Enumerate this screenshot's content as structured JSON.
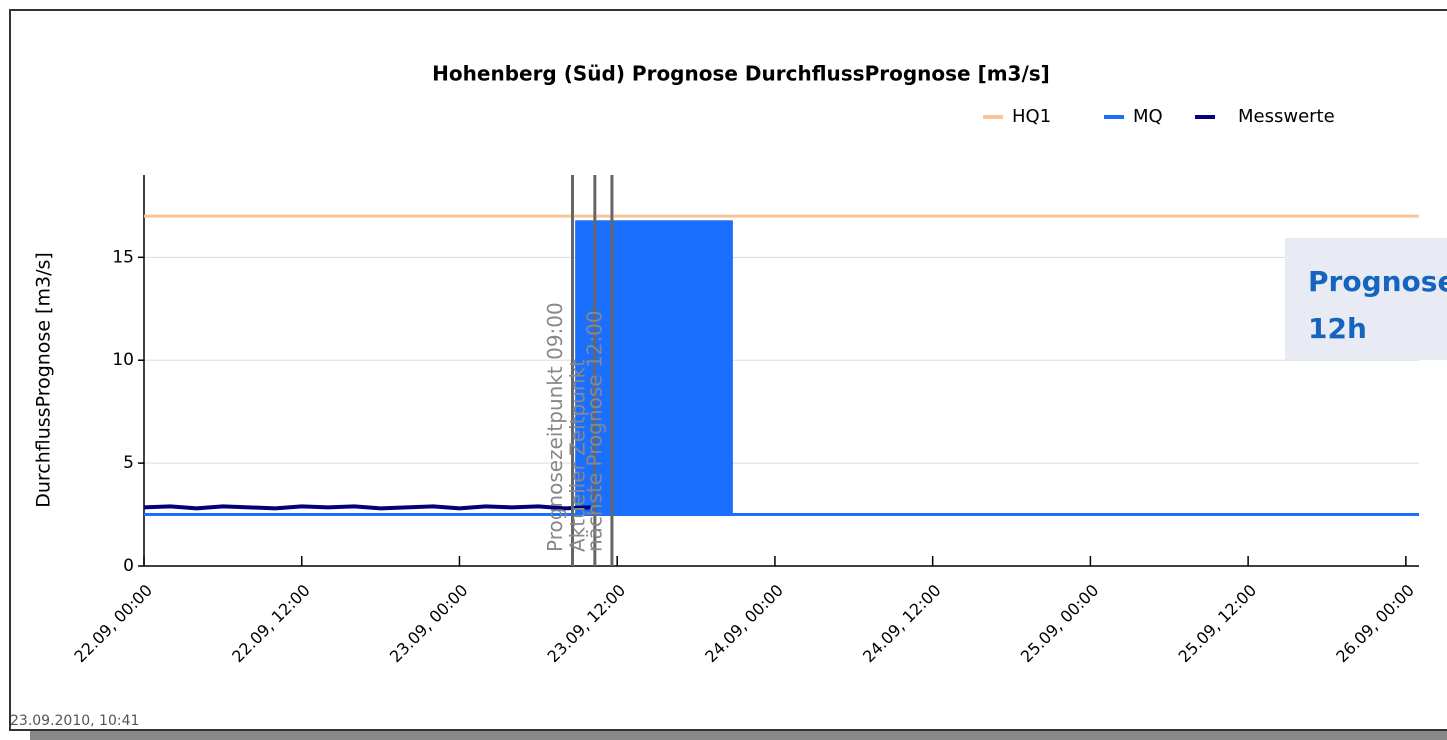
{
  "chart_data": {
    "type": "line",
    "title": "Hohenberg (Süd) Prognose DurchflussPrognose [m3/s]",
    "y_label": "DurchflussPrognose [m3/s]",
    "timestamp": "23.09.2010, 10:41",
    "overlay": [
      "Prognose",
      "12h"
    ],
    "xlim": [
      0,
      97
    ],
    "xticks": [
      {
        "value": 0,
        "label": "22.09, 00:00"
      },
      {
        "value": 12,
        "label": "22.09, 12:00"
      },
      {
        "value": 24,
        "label": "23.09, 00:00"
      },
      {
        "value": 36,
        "label": "23.09, 12:00"
      },
      {
        "value": 48,
        "label": "24.09, 00:00"
      },
      {
        "value": 60,
        "label": "24.09, 12:00"
      },
      {
        "value": 72,
        "label": "25.09, 00:00"
      },
      {
        "value": 84,
        "label": "25.09, 12:00"
      },
      {
        "value": 96,
        "label": "26.09, 00:00"
      }
    ],
    "ylim": [
      0,
      19
    ],
    "yticks": [
      0,
      5,
      10,
      15
    ],
    "grid": true,
    "legend": "top-right",
    "series": [
      {
        "name": "HQ1",
        "color": "#f9c596",
        "x": [
          0,
          97
        ],
        "values": [
          17,
          17
        ]
      },
      {
        "name": "MQ",
        "color": "#1a6fff",
        "x": [
          0,
          97
        ],
        "values": [
          2.5,
          2.5
        ]
      },
      {
        "name": "Messwerte",
        "color": "#00007a",
        "x": [
          0,
          2,
          4,
          6,
          8,
          10,
          12,
          14,
          16,
          18,
          20,
          22,
          24,
          26,
          28,
          30,
          32,
          34
        ],
        "values": [
          2.85,
          2.9,
          2.8,
          2.9,
          2.85,
          2.8,
          2.9,
          2.85,
          2.9,
          2.8,
          2.85,
          2.9,
          2.8,
          2.9,
          2.85,
          2.9,
          2.8,
          2.85
        ]
      }
    ],
    "forecast": {
      "color": "#1a6fff",
      "x": [
        32.8,
        44.8
      ],
      "value": 16.8,
      "base": 2.5
    },
    "markers": [
      {
        "x": 32.6,
        "label": "Prognosezeitpunkt 09:00"
      },
      {
        "x": 34.3,
        "label": "Aktueller Zeitpunkt"
      },
      {
        "x": 35.6,
        "label": "nächste Prognose 12:00"
      }
    ]
  }
}
